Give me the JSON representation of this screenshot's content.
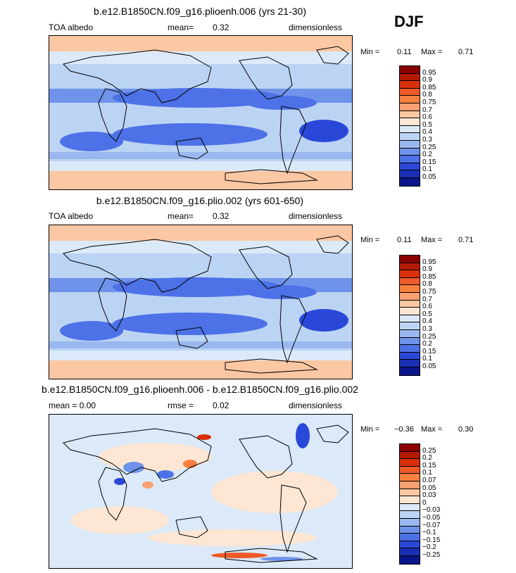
{
  "season": "DJF",
  "panels": [
    {
      "title": "b.e12.B1850CN.f09_g16.plioenh.006 (yrs 21-30)",
      "left": "TOA albedo",
      "mid_label": "mean=",
      "mid_value": "0.32",
      "right": "dimensionless",
      "min_label": "Min =",
      "min_value": "0.11",
      "max_label": "Max =",
      "max_value": "0.71",
      "levels": [
        "0.95",
        "0.9",
        "0.85",
        "0.8",
        "0.75",
        "0.7",
        "0.6",
        "0.5",
        "0.4",
        "0.3",
        "0.25",
        "0.2",
        "0.15",
        "0.1",
        "0.05"
      ],
      "colors": [
        "#8b0000",
        "#b51a00",
        "#d9300a",
        "#ee5a2a",
        "#f8803f",
        "#fba070",
        "#fcc7a3",
        "#fde7d4",
        "#dbe9f8",
        "#bcd4f4",
        "#9ab8ef",
        "#6f93ea",
        "#4d71e6",
        "#2a48d8",
        "#1a2fb4",
        "#0b158b"
      ]
    },
    {
      "title": "b.e12.B1850CN.f09_g16.plio.002 (yrs 601-650)",
      "left": "TOA albedo",
      "mid_label": "mean=",
      "mid_value": "0.32",
      "right": "dimensionless",
      "min_label": "Min =",
      "min_value": "0.11",
      "max_label": "Max =",
      "max_value": "0.71",
      "levels": [
        "0.95",
        "0.9",
        "0.85",
        "0.8",
        "0.75",
        "0.7",
        "0.6",
        "0.5",
        "0.4",
        "0.3",
        "0.25",
        "0.2",
        "0.15",
        "0.1",
        "0.05"
      ],
      "colors": [
        "#8b0000",
        "#b51a00",
        "#d9300a",
        "#ee5a2a",
        "#f8803f",
        "#fba070",
        "#fcc7a3",
        "#fde7d4",
        "#dbe9f8",
        "#bcd4f4",
        "#9ab8ef",
        "#6f93ea",
        "#4d71e6",
        "#2a48d8",
        "#1a2fb4",
        "#0b158b"
      ]
    },
    {
      "title": "b.e12.B1850CN.f09_g16.plioenh.006 - b.e12.B1850CN.f09_g16.plio.002",
      "left": "mean =    0.00",
      "mid_label": "rmse =",
      "mid_value": "0.02",
      "right": "dimensionless",
      "min_label": "Min =",
      "min_value": "−0.36",
      "max_label": "Max =",
      "max_value": "0.30",
      "levels": [
        "0.25",
        "0.2",
        "0.15",
        "0.1",
        "0.07",
        "0.05",
        "0.03",
        "0",
        "−0.03",
        "−0.05",
        "−0.07",
        "−0.1",
        "−0.15",
        "−0.2",
        "−0.25"
      ],
      "colors": [
        "#8b0000",
        "#b51a00",
        "#d9300a",
        "#ee5a2a",
        "#f8803f",
        "#fba070",
        "#fcc7a3",
        "#fde7d4",
        "#dbe9f8",
        "#bcd4f4",
        "#9ab8ef",
        "#6f93ea",
        "#4d71e6",
        "#2a48d8",
        "#1a2fb4",
        "#0b158b"
      ]
    }
  ]
}
